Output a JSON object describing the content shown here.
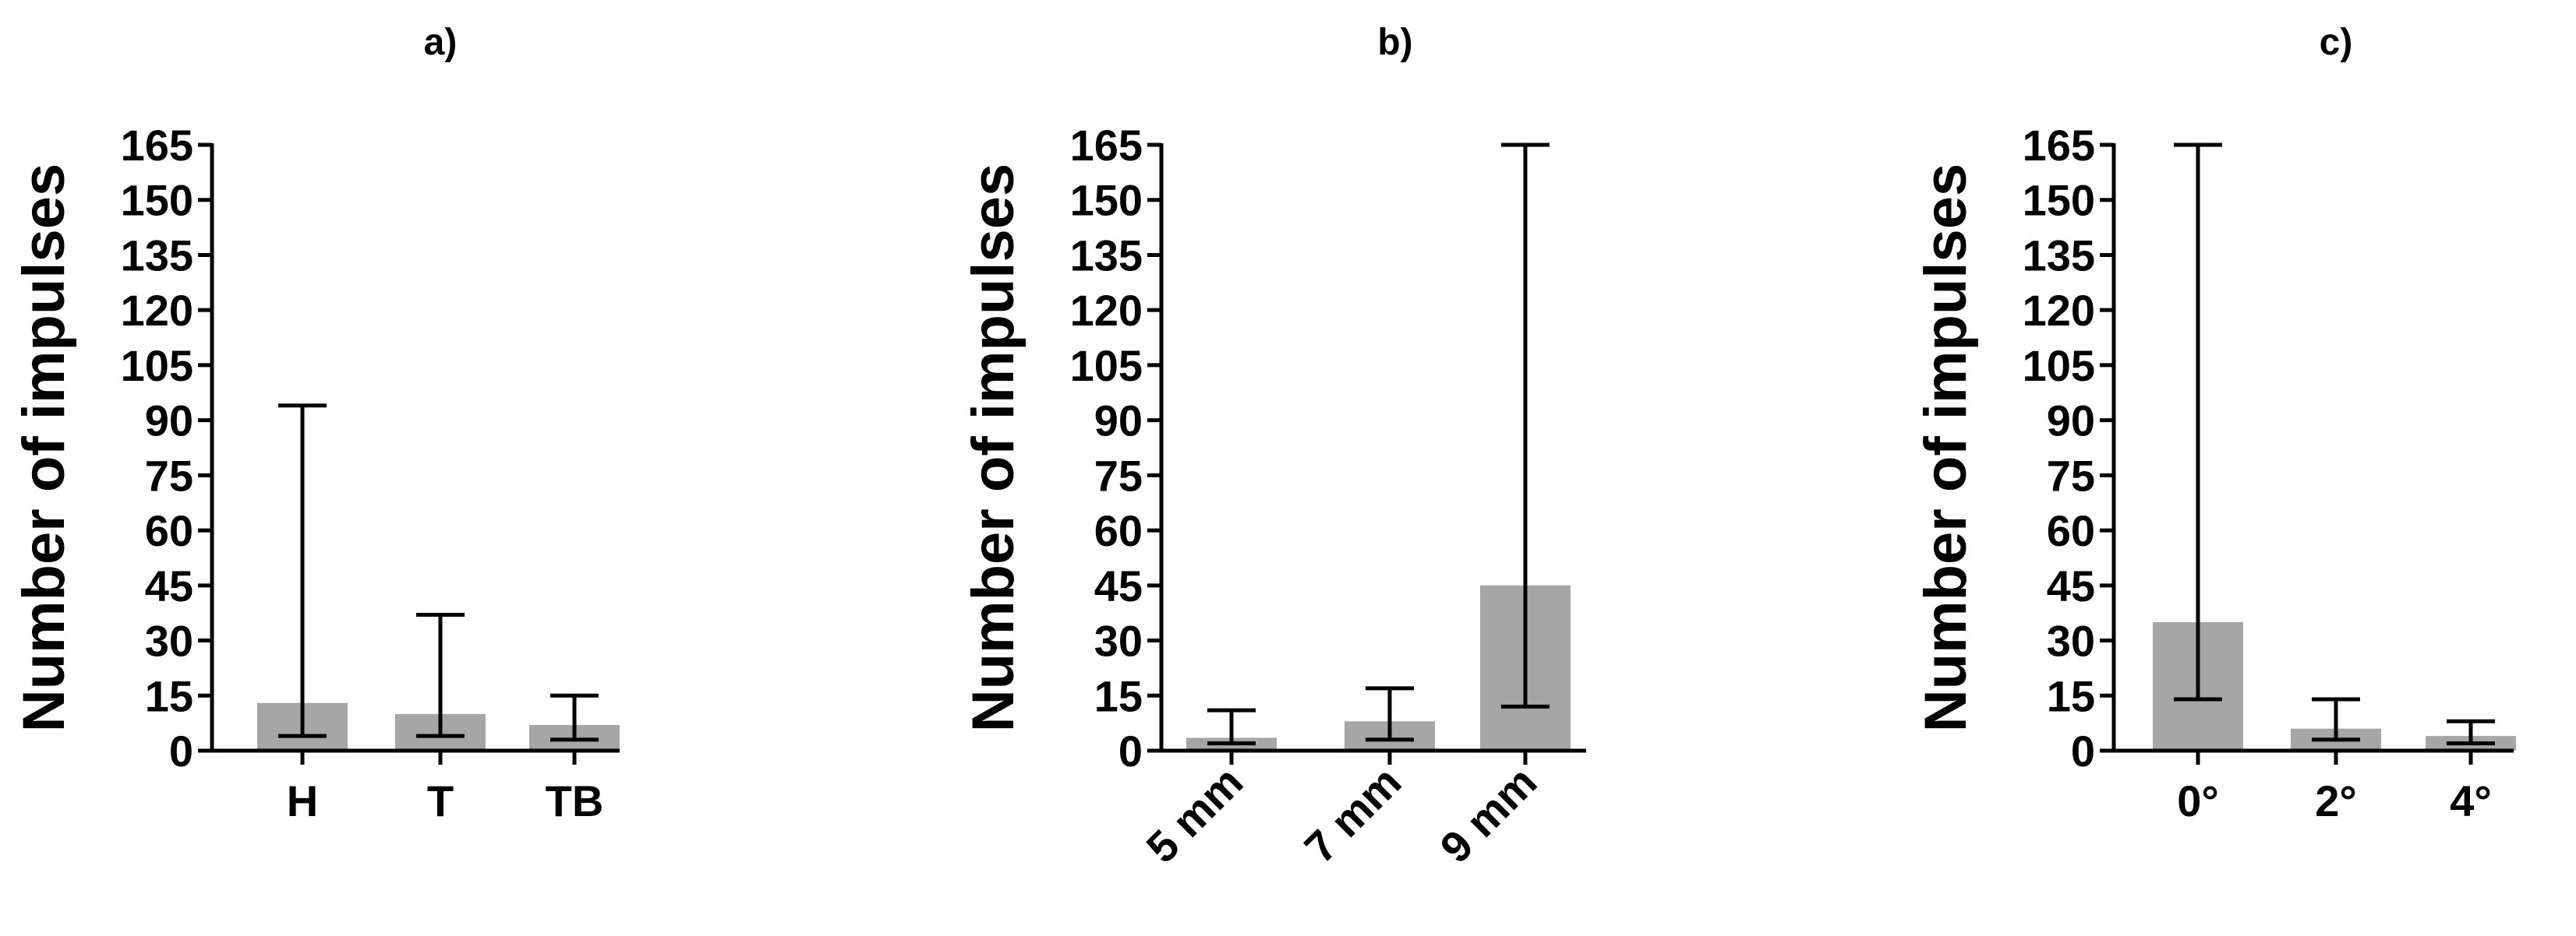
{
  "colors": {
    "bar": "#a6a6a6",
    "axis": "#000000",
    "text": "#000000",
    "background": "#ffffff"
  },
  "chart_data": [
    {
      "type": "bar",
      "title": "a)",
      "ylabel": "Number of impulses",
      "xlabel": "",
      "ylim": [
        0,
        165
      ],
      "yticks": [
        0,
        15,
        30,
        45,
        60,
        75,
        90,
        105,
        120,
        135,
        150,
        165
      ],
      "ytick_labels": [
        "0",
        "15",
        "30",
        "45",
        "60",
        "75",
        "90",
        "105",
        "120",
        "135",
        "150",
        "165"
      ],
      "categories": [
        "H",
        "T",
        "TB"
      ],
      "rotate_labels": false,
      "values": [
        13,
        10,
        7
      ],
      "error_low": [
        4,
        4,
        3
      ],
      "error_high": [
        94,
        37,
        15
      ],
      "grid": false,
      "error_bars": true
    },
    {
      "type": "bar",
      "title": "b)",
      "ylabel": "Number of impulses",
      "xlabel": "",
      "ylim": [
        0,
        165
      ],
      "yticks": [
        0,
        15,
        30,
        45,
        60,
        75,
        90,
        105,
        120,
        135,
        150,
        165
      ],
      "ytick_labels": [
        "0",
        "15",
        "30",
        "45",
        "60",
        "75",
        "90",
        "105",
        "120",
        "135",
        "150",
        "165"
      ],
      "categories": [
        "5 mm",
        "7 mm",
        "9 mm"
      ],
      "rotate_labels": true,
      "values": [
        3.5,
        8,
        45
      ],
      "error_low": [
        2,
        3,
        12
      ],
      "error_high": [
        11,
        17,
        165
      ],
      "grid": false,
      "error_bars": true
    },
    {
      "type": "bar",
      "title": "c)",
      "ylabel": "Number of impulses",
      "xlabel": "",
      "ylim": [
        0,
        165
      ],
      "yticks": [
        0,
        15,
        30,
        45,
        60,
        75,
        90,
        105,
        120,
        135,
        150,
        165
      ],
      "ytick_labels": [
        "0",
        "15",
        "30",
        "45",
        "60",
        "75",
        "90",
        "105",
        "120",
        "135",
        "150",
        "165"
      ],
      "categories": [
        "0°",
        "2°",
        "4°"
      ],
      "rotate_labels": false,
      "values": [
        35,
        6,
        4
      ],
      "error_low": [
        14,
        3,
        2
      ],
      "error_high": [
        165,
        14,
        8
      ],
      "grid": false,
      "error_bars": true
    }
  ]
}
